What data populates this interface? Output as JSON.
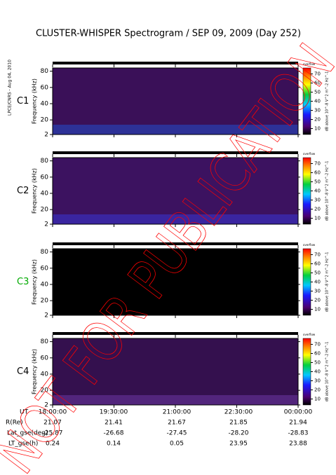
{
  "title": "CLUSTER-WHISPER Spectrogram / SEP 09, 2009 (Day 252)",
  "side_label": "LPCE/CNRS - Aug 04, 2010",
  "watermark": "NOT FOR PUBLICATION",
  "chart_data": [
    {
      "type": "spectrogram",
      "label": "C1",
      "label_color": "#000000",
      "ylabel": "Frequency (kHz)",
      "ylim": [
        2,
        84
      ],
      "yticks": [
        2,
        20,
        40,
        60,
        80
      ],
      "xlim": [
        18,
        24
      ],
      "xticks": [
        18,
        19.5,
        21,
        22.5,
        24
      ],
      "background": "#3a1058",
      "band_color": "#2a3aa8",
      "colorbar": {
        "label": "dB above 10^-8 V^2 m^-2 Hz^-1",
        "top_label": "overflow",
        "lim": [
          5,
          75
        ],
        "ticks": [
          10,
          20,
          30,
          40,
          50,
          60,
          70
        ]
      }
    },
    {
      "type": "spectrogram",
      "label": "C2",
      "label_color": "#000000",
      "ylabel": "Frequency (kHz)",
      "ylim": [
        2,
        84
      ],
      "yticks": [
        2,
        20,
        40,
        60,
        80
      ],
      "xlim": [
        18,
        24
      ],
      "xticks": [
        18,
        19.5,
        21,
        22.5,
        24
      ],
      "background": "#3c1260",
      "band_color": "#3a2ab0",
      "colorbar": {
        "label": "dB above 10^-8 V^2 m^-2 Hz^-1",
        "top_label": "overflow",
        "lim": [
          5,
          75
        ],
        "ticks": [
          10,
          20,
          30,
          40,
          50,
          60,
          70
        ]
      }
    },
    {
      "type": "spectrogram",
      "label": "C3",
      "label_color": "#00aa00",
      "ylabel": "Frequency (kHz)",
      "ylim": [
        2,
        84
      ],
      "yticks": [
        2,
        20,
        40,
        60,
        80
      ],
      "xlim": [
        18,
        24
      ],
      "xticks": [
        18,
        19.5,
        21,
        22.5,
        24
      ],
      "background": "#000000",
      "band_color": "#000000",
      "colorbar": {
        "label": "dB above 10^-8 V^2 m^-2 Hz^-1",
        "top_label": "overflow",
        "lim": [
          5,
          75
        ],
        "ticks": [
          10,
          20,
          30,
          40,
          50,
          60,
          70
        ]
      }
    },
    {
      "type": "spectrogram",
      "label": "C4",
      "label_color": "#000000",
      "ylabel": "Frequency (kHz)",
      "ylim": [
        2,
        84
      ],
      "yticks": [
        2,
        20,
        40,
        60,
        80
      ],
      "xlim": [
        18,
        24
      ],
      "xticks": [
        18,
        19.5,
        21,
        22.5,
        24
      ],
      "background": "#34104e",
      "band_color": "#5a2a88",
      "colorbar": {
        "label": "dB above 10^-8 V^2 m^-2 Hz^-1",
        "top_label": "overflow",
        "lim": [
          5,
          75
        ],
        "ticks": [
          10,
          20,
          30,
          40,
          50,
          60,
          70
        ]
      }
    }
  ],
  "ephemeris": {
    "labels": [
      "UT",
      "R(Re)",
      "Lat_gse(deg)",
      "LT_gse(h)"
    ],
    "rows": [
      [
        "18:00:00",
        "19:30:00",
        "21:00:00",
        "22:30:00",
        "00:00:00"
      ],
      [
        "21.07",
        "21.41",
        "21.67",
        "21.85",
        "21.94"
      ],
      [
        "-25.87",
        "-26.68",
        "-27.45",
        "-28.20",
        "-28.83"
      ],
      [
        "0.24",
        "0.14",
        "0.05",
        "23.95",
        "23.88"
      ]
    ]
  }
}
